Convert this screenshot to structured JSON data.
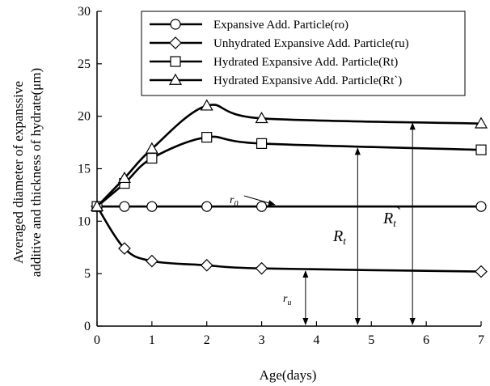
{
  "chart_data": {
    "type": "line",
    "xlabel": "Age(days)",
    "ylabel_line1": "Averaged diameter of expanssive",
    "ylabel_line2": "additive and thickness of hydrate(μm)",
    "xlim": [
      0,
      7
    ],
    "ylim": [
      0,
      30
    ],
    "xticks": [
      0,
      1,
      2,
      3,
      4,
      5,
      6,
      7
    ],
    "yticks": [
      0,
      5,
      10,
      15,
      20,
      25,
      30
    ],
    "grid": false,
    "legend_position": "top-right",
    "series": [
      {
        "name": "Expansive Add. Particle(ro)",
        "marker": "circle",
        "x": [
          0,
          0.5,
          1,
          2,
          3,
          7
        ],
        "y": [
          11.4,
          11.4,
          11.4,
          11.4,
          11.4,
          11.4
        ]
      },
      {
        "name": "Unhydrated Expansive Add. Particle(ru)",
        "marker": "diamond",
        "x": [
          0,
          0.5,
          1,
          2,
          3,
          7
        ],
        "y": [
          11.4,
          7.4,
          6.2,
          5.8,
          5.5,
          5.2
        ]
      },
      {
        "name": "Hydrated Expansive Add. Particle(Rt)",
        "marker": "square",
        "x": [
          0,
          0.5,
          1,
          2,
          3,
          7
        ],
        "y": [
          11.4,
          13.6,
          16.0,
          18.0,
          17.4,
          16.8
        ]
      },
      {
        "name": "Hydrated Expansive Add. Particle(Rt`)",
        "marker": "triangle",
        "x": [
          0,
          0.5,
          1,
          2,
          3,
          7
        ],
        "y": [
          11.4,
          14.1,
          16.9,
          21.0,
          19.8,
          19.3
        ]
      }
    ],
    "annotations": [
      {
        "base": "r",
        "sub": "0",
        "suffix": "",
        "size": "small"
      },
      {
        "base": "R",
        "sub": "t",
        "suffix": "",
        "size": "large"
      },
      {
        "base": "R",
        "sub": "t",
        "suffix": "`",
        "size": "large"
      },
      {
        "base": "r",
        "sub": "u",
        "suffix": "",
        "size": "small"
      }
    ]
  }
}
